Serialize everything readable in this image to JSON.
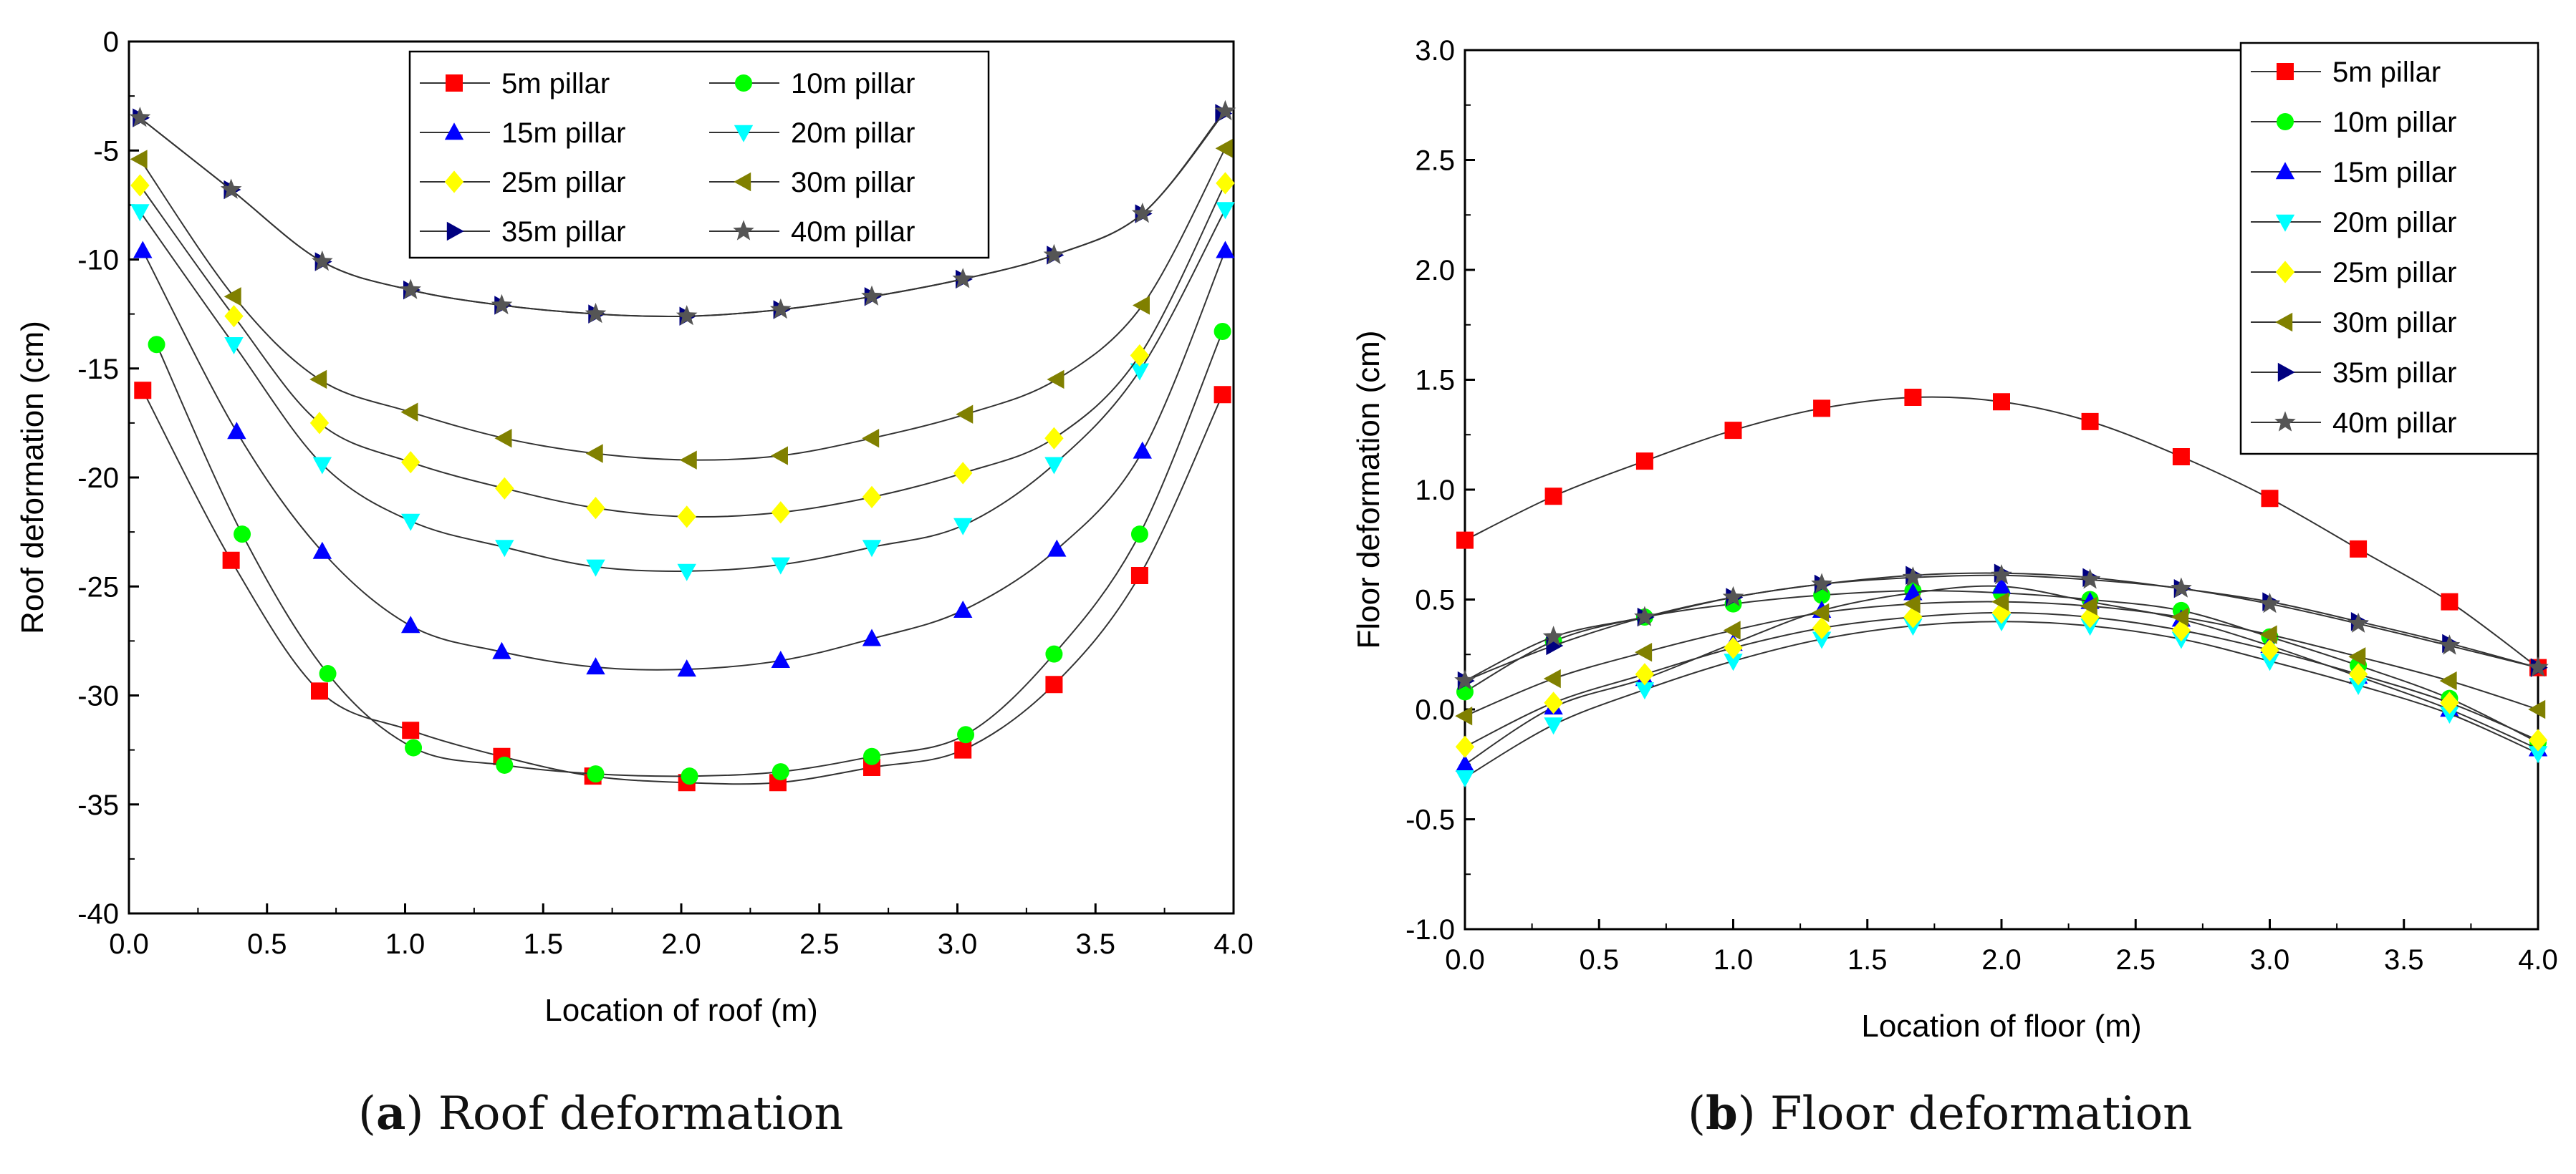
{
  "chart_data": [
    {
      "type": "line",
      "panel_caption": {
        "tag": "a",
        "text": "Roof deformation"
      },
      "title": "",
      "xlabel": "Location of roof (m)",
      "ylabel": "Roof deformation (cm)",
      "xlim": [
        0.0,
        4.0
      ],
      "ylim": [
        -40,
        0
      ],
      "xticks": [
        "0.0",
        "0.5",
        "1.0",
        "1.5",
        "2.0",
        "2.5",
        "3.0",
        "3.5",
        "4.0"
      ],
      "yticks": [
        "0",
        "-5",
        "-10",
        "-15",
        "-20",
        "-25",
        "-30",
        "-35",
        "-40"
      ],
      "grid": false,
      "legend_position": "top-center",
      "legend_columns": 2,
      "series": [
        {
          "name": "5m pillar",
          "marker": "square",
          "color": "#ff0000",
          "x": [
            0.05,
            0.37,
            0.69,
            1.02,
            1.35,
            1.68,
            2.02,
            2.35,
            2.69,
            3.02,
            3.35,
            3.66,
            3.96
          ],
          "y": [
            -16.0,
            -23.8,
            -29.8,
            -31.6,
            -32.8,
            -33.7,
            -34.0,
            -34.0,
            -33.3,
            -32.5,
            -29.5,
            -24.5,
            -16.2
          ]
        },
        {
          "name": "10m pillar",
          "marker": "circle",
          "color": "#00ff00",
          "x": [
            0.1,
            0.41,
            0.72,
            1.03,
            1.36,
            1.69,
            2.03,
            2.36,
            2.69,
            3.03,
            3.35,
            3.66,
            3.96
          ],
          "y": [
            -13.9,
            -22.6,
            -29.0,
            -32.4,
            -33.2,
            -33.6,
            -33.7,
            -33.5,
            -32.8,
            -31.8,
            -28.1,
            -22.6,
            -13.3
          ]
        },
        {
          "name": "15m pillar",
          "marker": "triangle-up",
          "color": "#0000ff",
          "x": [
            0.05,
            0.39,
            0.7,
            1.02,
            1.35,
            1.69,
            2.02,
            2.36,
            2.69,
            3.02,
            3.36,
            3.67,
            3.97
          ],
          "y": [
            -9.6,
            -17.9,
            -23.4,
            -26.8,
            -28.0,
            -28.7,
            -28.8,
            -28.4,
            -27.4,
            -26.1,
            -23.3,
            -18.8,
            -9.6
          ]
        },
        {
          "name": "20m pillar",
          "marker": "triangle-down",
          "color": "#00ffff",
          "x": [
            0.04,
            0.38,
            0.7,
            1.02,
            1.36,
            1.69,
            2.02,
            2.36,
            2.69,
            3.02,
            3.35,
            3.66,
            3.97
          ],
          "y": [
            -7.8,
            -13.9,
            -19.4,
            -22.0,
            -23.2,
            -24.1,
            -24.3,
            -24.0,
            -23.2,
            -22.2,
            -19.4,
            -15.1,
            -7.7
          ]
        },
        {
          "name": "25m pillar",
          "marker": "diamond",
          "color": "#ffff00",
          "x": [
            0.04,
            0.38,
            0.69,
            1.02,
            1.36,
            1.69,
            2.02,
            2.36,
            2.69,
            3.02,
            3.35,
            3.66,
            3.97
          ],
          "y": [
            -6.6,
            -12.6,
            -17.5,
            -19.3,
            -20.5,
            -21.4,
            -21.8,
            -21.6,
            -20.9,
            -19.8,
            -18.2,
            -14.4,
            -6.5
          ]
        },
        {
          "name": "30m pillar",
          "marker": "triangle-left",
          "color": "#808000",
          "x": [
            0.04,
            0.38,
            0.69,
            1.02,
            1.36,
            1.69,
            2.03,
            2.36,
            2.69,
            3.03,
            3.36,
            3.67,
            3.97
          ],
          "y": [
            -5.4,
            -11.7,
            -15.5,
            -17.0,
            -18.2,
            -18.9,
            -19.2,
            -19.0,
            -18.2,
            -17.1,
            -15.5,
            -12.1,
            -4.9
          ]
        },
        {
          "name": "35m pillar",
          "marker": "triangle-right",
          "color": "#000080",
          "x": [
            0.04,
            0.37,
            0.7,
            1.02,
            1.35,
            1.69,
            2.02,
            2.36,
            2.69,
            3.02,
            3.35,
            3.67,
            3.96
          ],
          "y": [
            -3.5,
            -6.8,
            -10.1,
            -11.4,
            -12.1,
            -12.5,
            -12.6,
            -12.3,
            -11.7,
            -10.9,
            -9.8,
            -7.9,
            -3.3
          ]
        },
        {
          "name": "40m pillar",
          "marker": "star",
          "color": "#555555",
          "x": [
            0.04,
            0.37,
            0.7,
            1.02,
            1.35,
            1.69,
            2.02,
            2.36,
            2.69,
            3.02,
            3.35,
            3.67,
            3.97
          ],
          "y": [
            -3.5,
            -6.8,
            -10.1,
            -11.4,
            -12.1,
            -12.5,
            -12.6,
            -12.3,
            -11.7,
            -10.9,
            -9.8,
            -7.9,
            -3.2
          ]
        }
      ]
    },
    {
      "type": "line",
      "panel_caption": {
        "tag": "b",
        "text": "Floor deformation"
      },
      "title": "",
      "xlabel": "Location of floor (m)",
      "ylabel": "Floor deformation (cm)",
      "xlim": [
        0.0,
        4.0
      ],
      "ylim": [
        -1.0,
        3.0
      ],
      "xticks": [
        "0.0",
        "0.5",
        "1.0",
        "1.5",
        "2.0",
        "2.5",
        "3.0",
        "3.5",
        "4.0"
      ],
      "yticks": [
        "3.0",
        "2.5",
        "2.0",
        "1.5",
        "1.0",
        "0.5",
        "0.0",
        "-0.5",
        "-1.0"
      ],
      "grid": false,
      "legend_position": "top-right",
      "legend_columns": 1,
      "series": [
        {
          "name": "5m pillar",
          "marker": "square",
          "color": "#ff0000",
          "x": [
            0.0,
            0.33,
            0.67,
            1.0,
            1.33,
            1.67,
            2.0,
            2.33,
            2.67,
            3.0,
            3.33,
            3.67,
            4.0
          ],
          "y": [
            0.77,
            0.97,
            1.13,
            1.27,
            1.37,
            1.42,
            1.4,
            1.31,
            1.15,
            0.96,
            0.73,
            0.49,
            0.19
          ]
        },
        {
          "name": "10m pillar",
          "marker": "circle",
          "color": "#00ff00",
          "x": [
            0.0,
            0.33,
            0.67,
            1.0,
            1.33,
            1.67,
            2.0,
            2.33,
            2.67,
            3.0,
            3.33,
            3.67,
            4.0
          ],
          "y": [
            0.08,
            0.31,
            0.42,
            0.48,
            0.52,
            0.54,
            0.53,
            0.5,
            0.45,
            0.33,
            0.2,
            0.05,
            -0.15
          ]
        },
        {
          "name": "15m pillar",
          "marker": "triangle-up",
          "color": "#0000ff",
          "x": [
            0.0,
            0.33,
            0.67,
            1.0,
            1.33,
            1.67,
            2.0,
            2.33,
            2.67,
            3.0,
            3.33,
            3.67,
            4.0
          ],
          "y": [
            -0.25,
            0.01,
            0.14,
            0.3,
            0.45,
            0.53,
            0.56,
            0.49,
            0.41,
            0.29,
            0.15,
            0.0,
            -0.18
          ]
        },
        {
          "name": "20m pillar",
          "marker": "triangle-down",
          "color": "#00ffff",
          "x": [
            0.0,
            0.33,
            0.67,
            1.0,
            1.33,
            1.67,
            2.0,
            2.33,
            2.67,
            3.0,
            3.33,
            3.67,
            4.0
          ],
          "y": [
            -0.31,
            -0.07,
            0.09,
            0.22,
            0.32,
            0.38,
            0.4,
            0.38,
            0.32,
            0.22,
            0.11,
            -0.02,
            -0.2
          ]
        },
        {
          "name": "25m pillar",
          "marker": "diamond",
          "color": "#ffff00",
          "x": [
            0.0,
            0.33,
            0.67,
            1.0,
            1.33,
            1.67,
            2.0,
            2.33,
            2.67,
            3.0,
            3.33,
            3.67,
            4.0
          ],
          "y": [
            -0.17,
            0.03,
            0.16,
            0.28,
            0.37,
            0.42,
            0.44,
            0.42,
            0.36,
            0.27,
            0.16,
            0.03,
            -0.14
          ]
        },
        {
          "name": "30m pillar",
          "marker": "triangle-left",
          "color": "#808000",
          "x": [
            0.0,
            0.33,
            0.67,
            1.0,
            1.33,
            1.67,
            2.0,
            2.33,
            2.67,
            3.0,
            3.33,
            3.67,
            4.0
          ],
          "y": [
            -0.03,
            0.14,
            0.26,
            0.36,
            0.44,
            0.48,
            0.49,
            0.47,
            0.42,
            0.34,
            0.24,
            0.13,
            0.0
          ]
        },
        {
          "name": "35m pillar",
          "marker": "triangle-right",
          "color": "#000080",
          "x": [
            0.0,
            0.33,
            0.67,
            1.0,
            1.33,
            1.67,
            2.0,
            2.33,
            2.67,
            3.0,
            3.33,
            3.67,
            4.0
          ],
          "y": [
            0.13,
            0.29,
            0.42,
            0.51,
            0.57,
            0.61,
            0.62,
            0.6,
            0.55,
            0.49,
            0.4,
            0.3,
            0.19
          ]
        },
        {
          "name": "40m pillar",
          "marker": "star",
          "color": "#555555",
          "x": [
            0.0,
            0.33,
            0.67,
            1.0,
            1.33,
            1.67,
            2.0,
            2.33,
            2.67,
            3.0,
            3.33,
            3.67,
            4.0
          ],
          "y": [
            0.13,
            0.33,
            0.42,
            0.51,
            0.57,
            0.6,
            0.61,
            0.59,
            0.55,
            0.48,
            0.39,
            0.29,
            0.19
          ]
        }
      ]
    }
  ]
}
